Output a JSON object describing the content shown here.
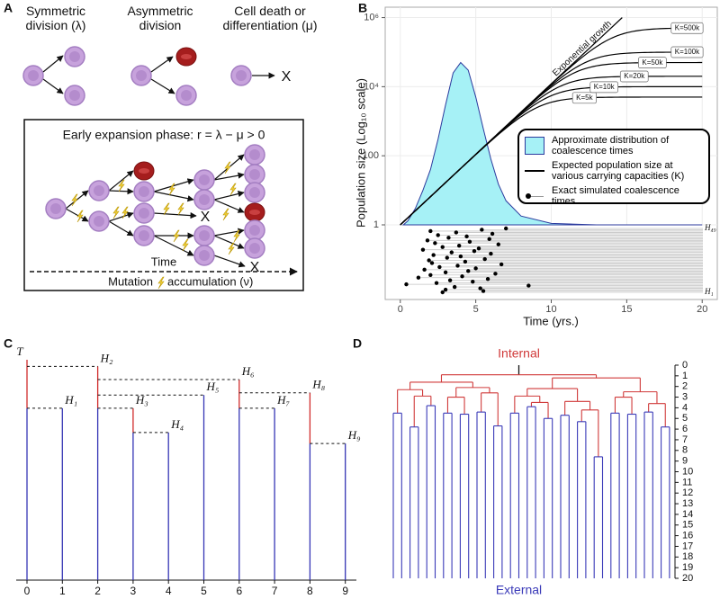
{
  "panel_a": {
    "label": "A",
    "symmetric": "Symmetric division (λ)",
    "asymmetric": "Asymmetric division",
    "death": "Cell death or differentiation (μ)",
    "box_title": "Early expansion phase: r = λ − μ > 0",
    "time": "Time",
    "mutation_before": "Mutation",
    "mutation_after": "accumulation (ν)",
    "death_mark": "X"
  },
  "panel_b": {
    "label": "B",
    "type": "line",
    "xlabel": "Time (yrs.)",
    "ylabel": "Population size (Log₁₀ scale)",
    "xlim": [
      -1,
      21
    ],
    "xticks": [
      0,
      5,
      10,
      15,
      20
    ],
    "yscale": "log",
    "ylim": [
      1,
      2000000
    ],
    "yticks": [
      1,
      100,
      {
        "value": 10000,
        "label": "10⁴"
      },
      {
        "value": 1000000,
        "label": "10⁶"
      }
    ],
    "grid": true,
    "distribution": {
      "name": "Approximate distribution of coalescence times",
      "color": "#a6f1f6",
      "line_color": "#2b3a9e",
      "x": [
        0.2,
        0.5,
        1,
        1.5,
        2,
        2.5,
        3,
        3.5,
        4,
        4.5,
        5,
        5.5,
        6,
        6.5,
        7,
        8,
        10,
        13,
        20
      ],
      "values": [
        1,
        1.3,
        3,
        10,
        40,
        300,
        3000,
        25000,
        50000,
        30000,
        5000,
        600,
        80,
        15,
        5,
        1.8,
        1.1,
        1,
        1
      ]
    },
    "exponential": {
      "name": "Exponential growth",
      "color": "#000000",
      "x": [
        0,
        14.7
      ],
      "values": [
        1,
        1000000
      ]
    },
    "carrying_capacities": {
      "name": "Expected population size at various carrying capacities (K)",
      "color": "#000000",
      "values": [
        5000,
        10000,
        20000,
        50000,
        100000,
        500000
      ],
      "value_labels": [
        "K=5k",
        "K=10k",
        "K=20k",
        "K=50k",
        "K=100k",
        "K=500k"
      ]
    },
    "coalescence": {
      "name": "Exact simulated coalescence times",
      "color": "#000000",
      "line_color": "#c4c4c4",
      "top_label": "H₄₉",
      "bottom_label": "H₁",
      "times": [
        2.8,
        5.5,
        3.0,
        5.3,
        3.6,
        8.5,
        0.4,
        2.4,
        4.8,
        3.3,
        5.8,
        1.2,
        4.1,
        2.0,
        6.3,
        3.0,
        4.5,
        1.6,
        5.0,
        2.6,
        3.8,
        6.7,
        2.1,
        4.3,
        1.9,
        5.6,
        3.1,
        4.0,
        2.2,
        6.0,
        3.4,
        4.9,
        1.5,
        5.2,
        2.8,
        3.9,
        6.5,
        2.3,
        4.6,
        1.8,
        5.9,
        3.2,
        4.4,
        2.5,
        6.1,
        3.7,
        2.0,
        5.4,
        7.0
      ]
    }
  },
  "panel_c": {
    "label": "C",
    "positions": [
      0,
      1,
      2,
      3,
      4,
      5,
      6,
      7,
      8,
      9
    ],
    "nodes": [
      {
        "label": "T",
        "height": 1
      },
      {
        "label": "H₁",
        "height": 0.78,
        "parent": 0
      },
      {
        "label": "H₂",
        "height": 0.97,
        "parent": 0
      },
      {
        "label": "H₃",
        "height": 0.78,
        "parent": 2
      },
      {
        "label": "H₄",
        "height": 0.67,
        "parent": 3
      },
      {
        "label": "H₅",
        "height": 0.84,
        "parent": 2
      },
      {
        "label": "H₆",
        "height": 0.91,
        "parent": 2
      },
      {
        "label": "H₇",
        "height": 0.78,
        "parent": 6
      },
      {
        "label": "H₈",
        "height": 0.85,
        "parent": 6
      },
      {
        "label": "H₉",
        "height": 0.62,
        "parent": 8
      }
    ],
    "internal_color": "#d02b2b",
    "external_color": "#3535b5"
  },
  "panel_d": {
    "label": "D",
    "internal_label": "Internal",
    "external_label": "External",
    "internal_color": "#d03a3a",
    "external_color": "#3a3ab8",
    "ylim": [
      0,
      20
    ],
    "yticks": [
      0,
      1,
      2,
      3,
      4,
      5,
      6,
      7,
      8,
      9,
      10,
      11,
      12,
      13,
      14,
      15,
      16,
      17,
      18,
      19,
      20
    ],
    "tree": {
      "h": 0.9,
      "c": [
        {
          "h": 1.6,
          "c": [
            {
              "h": 2.3,
              "c": [
                {
                  "h": 4.5,
                  "c": [
                    20,
                    20
                  ]
                },
                {
                  "h": 2.9,
                  "c": [
                    {
                      "h": 5.8,
                      "c": [
                        20,
                        20
                      ]
                    },
                    {
                      "h": 3.8,
                      "c": [
                        20,
                        20
                      ]
                    }
                  ]
                }
              ]
            },
            {
              "h": 2.1,
              "c": [
                {
                  "h": 3.0,
                  "c": [
                    {
                      "h": 4.5,
                      "c": [
                        20,
                        20
                      ]
                    },
                    {
                      "h": 4.6,
                      "c": [
                        20,
                        20
                      ]
                    }
                  ]
                },
                {
                  "h": 2.6,
                  "c": [
                    {
                      "h": 4.4,
                      "c": [
                        20,
                        20
                      ]
                    },
                    {
                      "h": 5.7,
                      "c": [
                        20,
                        20
                      ]
                    }
                  ]
                }
              ]
            }
          ]
        },
        {
          "h": 1.2,
          "c": [
            {
              "h": 2.2,
              "c": [
                {
                  "h": 2.9,
                  "c": [
                    {
                      "h": 4.5,
                      "c": [
                        20,
                        20
                      ]
                    },
                    {
                      "h": 3.5,
                      "c": [
                        {
                          "h": 3.9,
                          "c": [
                            20,
                            20
                          ]
                        },
                        {
                          "h": 5.0,
                          "c": [
                            20,
                            20
                          ]
                        }
                      ]
                    }
                  ]
                },
                {
                  "h": 3.4,
                  "c": [
                    {
                      "h": 4.7,
                      "c": [
                        20,
                        20
                      ]
                    },
                    {
                      "h": 4.2,
                      "c": [
                        {
                          "h": 5.3,
                          "c": [
                            20,
                            20
                          ]
                        },
                        {
                          "h": 8.6,
                          "c": [
                            20,
                            20
                          ]
                        }
                      ]
                    }
                  ]
                }
              ]
            },
            {
              "h": 2.5,
              "c": [
                {
                  "h": 3.0,
                  "c": [
                    {
                      "h": 4.5,
                      "c": [
                        20,
                        20
                      ]
                    },
                    {
                      "h": 4.6,
                      "c": [
                        20,
                        20
                      ]
                    }
                  ]
                },
                {
                  "h": 3.6,
                  "c": [
                    {
                      "h": 4.4,
                      "c": [
                        20,
                        20
                      ]
                    },
                    {
                      "h": 5.8,
                      "c": [
                        20,
                        20
                      ]
                    }
                  ]
                }
              ]
            }
          ]
        }
      ]
    }
  }
}
